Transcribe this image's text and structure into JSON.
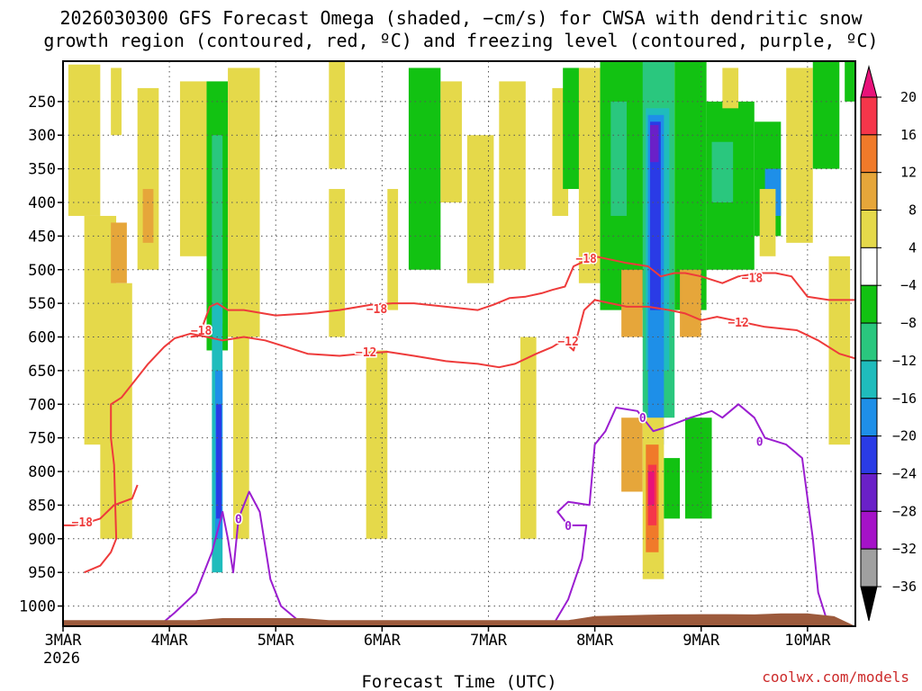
{
  "chart_data": {
    "type": "heatmap",
    "title_line1": "2026030300 GFS Forecast Omega (shaded, −cm/s) for CWSA with dendritic snow",
    "title_line2": "growth region (contoured, red, ºC) and freezing level (contoured, purple, ºC)",
    "xlabel": "Forecast Time (UTC)",
    "ylabel": "",
    "x_start_label": "3MAR",
    "x_start_year": "2026",
    "x_ticks": [
      "3MAR",
      "4MAR",
      "5MAR",
      "6MAR",
      "7MAR",
      "8MAR",
      "9MAR",
      "10MAR"
    ],
    "x_tick_days": [
      0,
      1,
      2,
      3,
      4,
      5,
      6,
      7
    ],
    "xlim_days": [
      0,
      7.45
    ],
    "y_ticks": [
      250,
      300,
      350,
      400,
      450,
      500,
      550,
      600,
      650,
      700,
      750,
      800,
      850,
      900,
      950,
      1000
    ],
    "ylim_hpa": [
      190,
      1030
    ],
    "colorbar": {
      "labels": [
        "20",
        "16",
        "12",
        "8",
        "4",
        "−4",
        "−8",
        "−12",
        "−16",
        "−20",
        "−24",
        "−28",
        "−32",
        "−36"
      ],
      "bins": [
        {
          "value": 22,
          "color": "#e8127a"
        },
        {
          "value": 18,
          "color": "#f5364a"
        },
        {
          "value": 14,
          "color": "#f07a2a"
        },
        {
          "value": 10,
          "color": "#e6a63a"
        },
        {
          "value": 6,
          "color": "#e5d94a"
        },
        {
          "value": 0,
          "color": "#ffffff"
        },
        {
          "value": -6,
          "color": "#12c212"
        },
        {
          "value": -10,
          "color": "#2ac77e"
        },
        {
          "value": -14,
          "color": "#1fbcbc"
        },
        {
          "value": -18,
          "color": "#1e8fe8"
        },
        {
          "value": -22,
          "color": "#2a3be6"
        },
        {
          "value": -26,
          "color": "#6a20c8"
        },
        {
          "value": -30,
          "color": "#a512c8"
        },
        {
          "value": -34,
          "color": "#a0a0a0"
        },
        {
          "value": -38,
          "color": "#000000"
        }
      ]
    },
    "omega_cells": [
      {
        "t0": 0.05,
        "t1": 0.35,
        "p0": 195,
        "p1": 420,
        "v": 6
      },
      {
        "t0": 0.45,
        "t1": 0.55,
        "p0": 200,
        "p1": 300,
        "v": 6
      },
      {
        "t0": 0.2,
        "t1": 0.5,
        "p0": 420,
        "p1": 760,
        "v": 6
      },
      {
        "t0": 0.45,
        "t1": 0.6,
        "p0": 430,
        "p1": 520,
        "v": 10
      },
      {
        "t0": 0.35,
        "t1": 0.65,
        "p0": 520,
        "p1": 900,
        "v": 6
      },
      {
        "t0": 0.7,
        "t1": 0.9,
        "p0": 230,
        "p1": 500,
        "v": 6
      },
      {
        "t0": 0.75,
        "t1": 0.85,
        "p0": 380,
        "p1": 460,
        "v": 10
      },
      {
        "t0": 1.1,
        "t1": 1.35,
        "p0": 220,
        "p1": 480,
        "v": 6
      },
      {
        "t0": 1.35,
        "t1": 1.55,
        "p0": 220,
        "p1": 620,
        "v": -6
      },
      {
        "t0": 1.4,
        "t1": 1.5,
        "p0": 300,
        "p1": 580,
        "v": -10
      },
      {
        "t0": 1.4,
        "t1": 1.5,
        "p0": 550,
        "p1": 950,
        "v": -14
      },
      {
        "t0": 1.43,
        "t1": 1.5,
        "p0": 650,
        "p1": 900,
        "v": -18
      },
      {
        "t0": 1.44,
        "t1": 1.49,
        "p0": 700,
        "p1": 870,
        "v": -22
      },
      {
        "t0": 1.55,
        "t1": 1.85,
        "p0": 200,
        "p1": 600,
        "v": 6
      },
      {
        "t0": 1.6,
        "t1": 1.75,
        "p0": 600,
        "p1": 900,
        "v": 6
      },
      {
        "t0": 2.5,
        "t1": 2.65,
        "p0": 190,
        "p1": 350,
        "v": 6
      },
      {
        "t0": 2.5,
        "t1": 2.65,
        "p0": 380,
        "p1": 600,
        "v": 6
      },
      {
        "t0": 2.85,
        "t1": 3.05,
        "p0": 620,
        "p1": 900,
        "v": 6
      },
      {
        "t0": 3.25,
        "t1": 3.55,
        "p0": 200,
        "p1": 500,
        "v": -6
      },
      {
        "t0": 3.05,
        "t1": 3.15,
        "p0": 380,
        "p1": 560,
        "v": 6
      },
      {
        "t0": 3.55,
        "t1": 3.75,
        "p0": 220,
        "p1": 400,
        "v": 6
      },
      {
        "t0": 3.8,
        "t1": 4.05,
        "p0": 300,
        "p1": 520,
        "v": 6
      },
      {
        "t0": 4.1,
        "t1": 4.35,
        "p0": 220,
        "p1": 500,
        "v": 6
      },
      {
        "t0": 4.3,
        "t1": 4.45,
        "p0": 600,
        "p1": 900,
        "v": 6
      },
      {
        "t0": 4.6,
        "t1": 4.75,
        "p0": 230,
        "p1": 420,
        "v": 6
      },
      {
        "t0": 4.7,
        "t1": 4.9,
        "p0": 200,
        "p1": 380,
        "v": -6
      },
      {
        "t0": 4.85,
        "t1": 5.05,
        "p0": 200,
        "p1": 520,
        "v": 6
      },
      {
        "t0": 5.05,
        "t1": 5.55,
        "p0": 190,
        "p1": 560,
        "v": -6
      },
      {
        "t0": 5.15,
        "t1": 5.3,
        "p0": 250,
        "p1": 420,
        "v": -10
      },
      {
        "t0": 5.25,
        "t1": 5.45,
        "p0": 500,
        "p1": 600,
        "v": 10
      },
      {
        "t0": 5.25,
        "t1": 5.45,
        "p0": 720,
        "p1": 830,
        "v": 10
      },
      {
        "t0": 5.45,
        "t1": 5.75,
        "p0": 190,
        "p1": 720,
        "v": -10
      },
      {
        "t0": 5.48,
        "t1": 5.7,
        "p0": 260,
        "p1": 650,
        "v": -14
      },
      {
        "t0": 5.5,
        "t1": 5.65,
        "p0": 270,
        "p1": 760,
        "v": -18
      },
      {
        "t0": 5.52,
        "t1": 5.62,
        "p0": 280,
        "p1": 560,
        "v": -22
      },
      {
        "t0": 5.52,
        "t1": 5.6,
        "p0": 285,
        "p1": 340,
        "v": -26
      },
      {
        "t0": 5.45,
        "t1": 5.65,
        "p0": 720,
        "p1": 960,
        "v": 6
      },
      {
        "t0": 5.48,
        "t1": 5.6,
        "p0": 760,
        "p1": 920,
        "v": 14
      },
      {
        "t0": 5.5,
        "t1": 5.58,
        "p0": 790,
        "p1": 880,
        "v": 18
      },
      {
        "t0": 5.5,
        "t1": 5.56,
        "p0": 800,
        "p1": 850,
        "v": 22
      },
      {
        "t0": 5.65,
        "t1": 5.8,
        "p0": 780,
        "p1": 870,
        "v": -6
      },
      {
        "t0": 5.75,
        "t1": 6.05,
        "p0": 190,
        "p1": 560,
        "v": -6
      },
      {
        "t0": 5.8,
        "t1": 6.0,
        "p0": 500,
        "p1": 600,
        "v": 10
      },
      {
        "t0": 5.85,
        "t1": 6.1,
        "p0": 720,
        "p1": 870,
        "v": -6
      },
      {
        "t0": 6.05,
        "t1": 6.5,
        "p0": 250,
        "p1": 500,
        "v": -6
      },
      {
        "t0": 6.1,
        "t1": 6.3,
        "p0": 310,
        "p1": 400,
        "v": -10
      },
      {
        "t0": 6.2,
        "t1": 6.35,
        "p0": 200,
        "p1": 260,
        "v": 6
      },
      {
        "t0": 6.5,
        "t1": 6.75,
        "p0": 280,
        "p1": 450,
        "v": -6
      },
      {
        "t0": 6.6,
        "t1": 6.75,
        "p0": 350,
        "p1": 420,
        "v": -18
      },
      {
        "t0": 6.55,
        "t1": 6.7,
        "p0": 380,
        "p1": 480,
        "v": 6
      },
      {
        "t0": 6.8,
        "t1": 7.05,
        "p0": 200,
        "p1": 460,
        "v": 6
      },
      {
        "t0": 7.05,
        "t1": 7.3,
        "p0": 190,
        "p1": 350,
        "v": -6
      },
      {
        "t0": 7.2,
        "t1": 7.4,
        "p0": 480,
        "p1": 760,
        "v": 6
      },
      {
        "t0": 7.35,
        "t1": 7.45,
        "p0": 190,
        "p1": 250,
        "v": -6
      }
    ],
    "contours": [
      {
        "name": "dgz-minus18-top",
        "color": "#ee3b3b",
        "value": "−18",
        "label_positions": [
          [
            1.3,
            590
          ],
          [
            2.95,
            558
          ],
          [
            4.92,
            483
          ],
          [
            6.48,
            512
          ]
        ],
        "points": [
          [
            1.2,
            600
          ],
          [
            1.28,
            598
          ],
          [
            1.38,
            555
          ],
          [
            1.45,
            550
          ],
          [
            1.55,
            560
          ],
          [
            1.7,
            560
          ],
          [
            2.0,
            568
          ],
          [
            2.3,
            565
          ],
          [
            2.6,
            560
          ],
          [
            2.9,
            552
          ],
          [
            3.1,
            550
          ],
          [
            3.3,
            550
          ],
          [
            3.6,
            555
          ],
          [
            3.9,
            560
          ],
          [
            4.05,
            552
          ],
          [
            4.2,
            542
          ],
          [
            4.35,
            540
          ],
          [
            4.5,
            535
          ],
          [
            4.6,
            530
          ],
          [
            4.72,
            525
          ],
          [
            4.8,
            495
          ],
          [
            5.0,
            480
          ],
          [
            5.3,
            490
          ],
          [
            5.5,
            495
          ],
          [
            5.62,
            510
          ],
          [
            5.75,
            505
          ],
          [
            5.85,
            505
          ],
          [
            6.0,
            510
          ],
          [
            6.2,
            520
          ],
          [
            6.35,
            510
          ],
          [
            6.55,
            505
          ],
          [
            6.7,
            505
          ],
          [
            6.85,
            510
          ],
          [
            7.0,
            540
          ],
          [
            7.2,
            545
          ],
          [
            7.45,
            545
          ]
        ]
      },
      {
        "name": "dgz-minus12",
        "color": "#ee3b3b",
        "value": "−12",
        "label_positions": [
          [
            2.85,
            622
          ],
          [
            4.75,
            606
          ],
          [
            6.35,
            578
          ]
        ],
        "points": [
          [
            0.2,
            950
          ],
          [
            0.35,
            940
          ],
          [
            0.45,
            920
          ],
          [
            0.5,
            900
          ],
          [
            0.48,
            790
          ],
          [
            0.45,
            750
          ],
          [
            0.45,
            700
          ],
          [
            0.55,
            690
          ],
          [
            0.7,
            660
          ],
          [
            0.8,
            640
          ],
          [
            0.95,
            615
          ],
          [
            1.05,
            602
          ],
          [
            1.2,
            595
          ],
          [
            1.35,
            600
          ],
          [
            1.5,
            605
          ],
          [
            1.7,
            600
          ],
          [
            1.9,
            605
          ],
          [
            2.1,
            615
          ],
          [
            2.3,
            625
          ],
          [
            2.6,
            628
          ],
          [
            2.8,
            625
          ],
          [
            3.05,
            622
          ],
          [
            3.3,
            628
          ],
          [
            3.6,
            636
          ],
          [
            3.9,
            640
          ],
          [
            4.1,
            645
          ],
          [
            4.25,
            640
          ],
          [
            4.45,
            625
          ],
          [
            4.6,
            615
          ],
          [
            4.7,
            605
          ],
          [
            4.8,
            620
          ],
          [
            4.9,
            560
          ],
          [
            5.0,
            545
          ],
          [
            5.15,
            550
          ],
          [
            5.3,
            555
          ],
          [
            5.5,
            555
          ],
          [
            5.7,
            560
          ],
          [
            5.85,
            565
          ],
          [
            6.0,
            575
          ],
          [
            6.15,
            570
          ],
          [
            6.3,
            575
          ],
          [
            6.45,
            580
          ],
          [
            6.6,
            585
          ],
          [
            6.9,
            590
          ],
          [
            7.1,
            605
          ],
          [
            7.3,
            625
          ],
          [
            7.45,
            632
          ]
        ]
      },
      {
        "name": "dgz-minus18-bottom",
        "color": "#ee3b3b",
        "value": "−18",
        "label_positions": [
          [
            0.18,
            875
          ]
        ],
        "points": [
          [
            0.0,
            880
          ],
          [
            0.1,
            880
          ],
          [
            0.25,
            875
          ],
          [
            0.35,
            870
          ],
          [
            0.48,
            850
          ],
          [
            0.65,
            840
          ],
          [
            0.7,
            820
          ]
        ]
      },
      {
        "name": "freezing-level-west",
        "color": "#9b1ed0",
        "value": "0",
        "label_positions": [
          [
            1.65,
            870
          ]
        ],
        "points": [
          [
            0.9,
            1030
          ],
          [
            1.05,
            1010
          ],
          [
            1.25,
            980
          ],
          [
            1.4,
            920
          ],
          [
            1.5,
            860
          ],
          [
            1.55,
            900
          ],
          [
            1.6,
            950
          ],
          [
            1.65,
            870
          ],
          [
            1.75,
            830
          ],
          [
            1.85,
            860
          ],
          [
            1.95,
            960
          ],
          [
            2.05,
            1000
          ],
          [
            2.2,
            1020
          ],
          [
            2.4,
            1030
          ]
        ]
      },
      {
        "name": "freezing-level-east",
        "color": "#9b1ed0",
        "value": "0",
        "label_positions": [
          [
            4.75,
            880
          ],
          [
            5.45,
            720
          ],
          [
            6.55,
            755
          ]
        ],
        "points": [
          [
            4.6,
            1030
          ],
          [
            4.75,
            990
          ],
          [
            4.88,
            930
          ],
          [
            4.92,
            880
          ],
          [
            4.75,
            880
          ],
          [
            4.65,
            860
          ],
          [
            4.75,
            845
          ],
          [
            4.95,
            850
          ],
          [
            5.0,
            760
          ],
          [
            5.1,
            740
          ],
          [
            5.2,
            705
          ],
          [
            5.4,
            710
          ],
          [
            5.55,
            740
          ],
          [
            5.65,
            735
          ],
          [
            5.9,
            720
          ],
          [
            6.1,
            710
          ],
          [
            6.2,
            720
          ],
          [
            6.35,
            700
          ],
          [
            6.5,
            720
          ],
          [
            6.6,
            750
          ],
          [
            6.8,
            760
          ],
          [
            6.95,
            780
          ],
          [
            7.05,
            900
          ],
          [
            7.1,
            980
          ],
          [
            7.2,
            1030
          ]
        ]
      }
    ],
    "terrain_color": "#9c5a3c"
  },
  "credit": "coolwx.com/models"
}
